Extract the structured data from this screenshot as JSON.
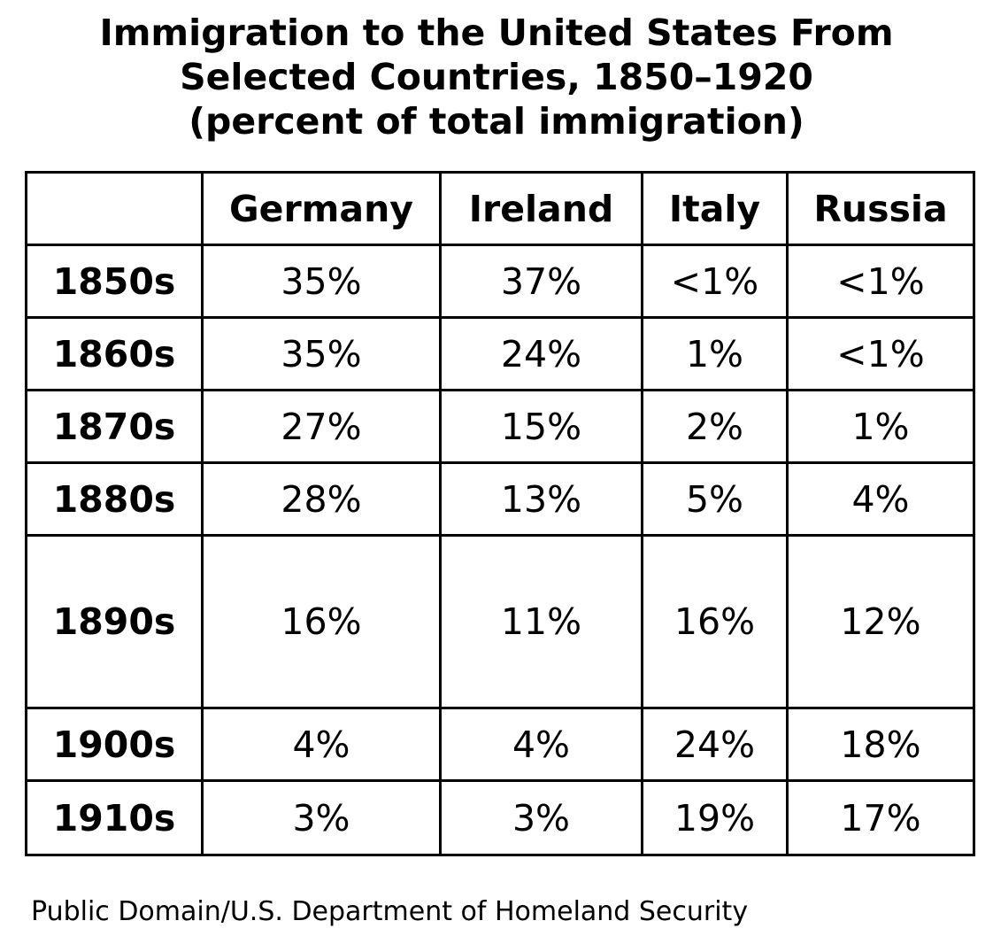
{
  "title": {
    "line1": "Immigration to the United States From",
    "line2": "Selected Countries, 1850–1920",
    "line3": "(percent of total immigration)"
  },
  "table": {
    "corner": "",
    "columns": [
      "Germany",
      "Ireland",
      "Italy",
      "Russia"
    ],
    "rows": [
      {
        "label": "1850s",
        "values": [
          "35%",
          "37%",
          "<1%",
          "<1%"
        ]
      },
      {
        "label": "1860s",
        "values": [
          "35%",
          "24%",
          "1%",
          "<1%"
        ]
      },
      {
        "label": "1870s",
        "values": [
          "27%",
          "15%",
          "2%",
          "1%"
        ]
      },
      {
        "label": "1880s",
        "values": [
          "28%",
          "13%",
          "5%",
          "4%"
        ]
      },
      {
        "label": "1890s",
        "values": [
          "16%",
          "11%",
          "16%",
          "12%"
        ]
      },
      {
        "label": "1900s",
        "values": [
          "4%",
          "4%",
          "24%",
          "18%"
        ]
      },
      {
        "label": "1910s",
        "values": [
          "3%",
          "3%",
          "19%",
          "17%"
        ]
      }
    ]
  },
  "source": "Public Domain/U.S. Department of Homeland Security"
}
